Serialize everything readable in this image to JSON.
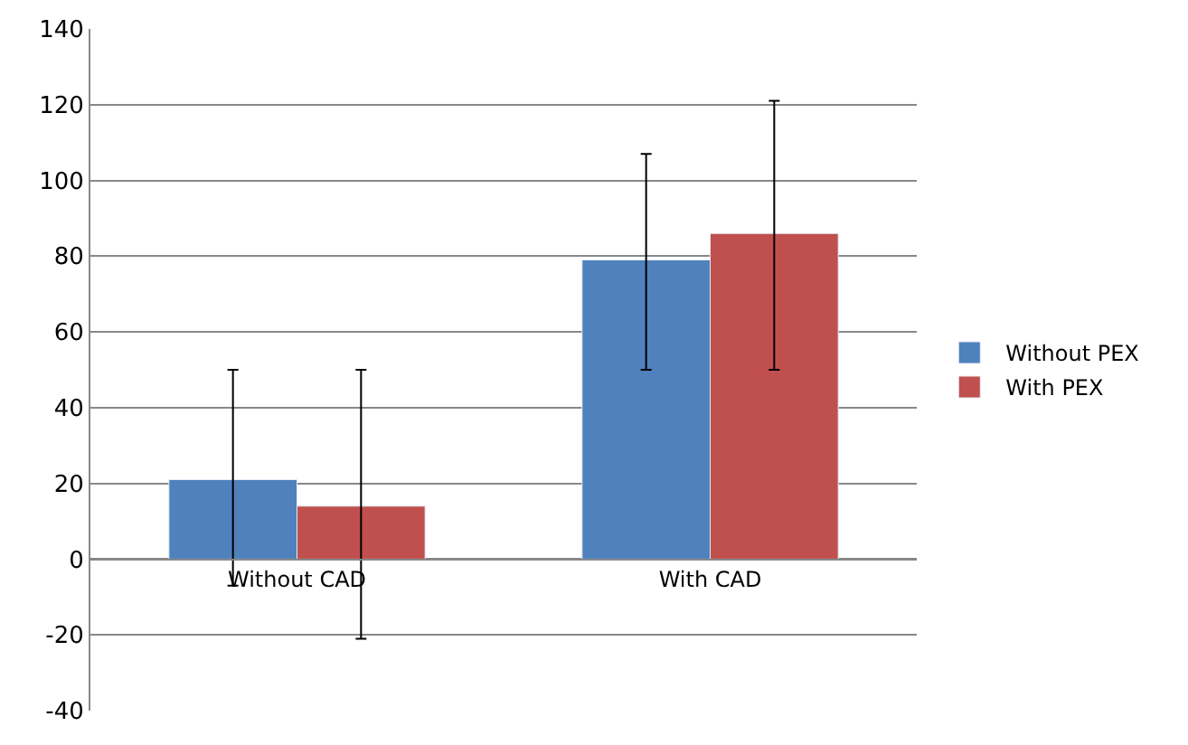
{
  "chart_data": {
    "type": "bar",
    "categories": [
      "Without CAD",
      "With CAD"
    ],
    "series": [
      {
        "name": "Without PEX",
        "color": "#4f81bd",
        "values": [
          21,
          79
        ],
        "errors": [
          [
            -7,
            50
          ],
          [
            50,
            107
          ]
        ]
      },
      {
        "name": "With PEX",
        "color": "#c0504d",
        "values": [
          14,
          86
        ],
        "errors": [
          [
            -21,
            50
          ],
          [
            50,
            121
          ]
        ]
      }
    ],
    "ylim": [
      -40,
      140
    ],
    "yticks": [
      -40,
      -20,
      0,
      20,
      40,
      60,
      80,
      100,
      120,
      140
    ],
    "grid": "y",
    "legend": "right"
  }
}
